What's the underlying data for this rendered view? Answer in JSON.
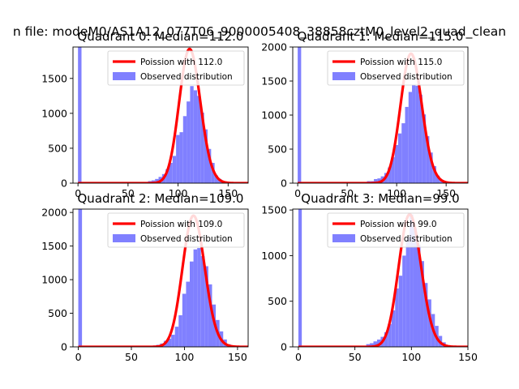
{
  "figure": {
    "suptitle": "n file: modeM0/AS1A12_077T06_9000005408_38858cztM0_level2_quad_clean"
  },
  "colors": {
    "poisson": "#ff0000",
    "histogram": "#8080ff",
    "axes": "#000000"
  },
  "chart_data": [
    {
      "type": "bar",
      "title": "Quadrant 0: Median=112.0",
      "xlim": [
        -5,
        170
      ],
      "ylim": [
        0,
        1950
      ],
      "xticks": [
        0,
        50,
        100,
        150
      ],
      "yticks": [
        0,
        500,
        1000,
        1500
      ],
      "legend": {
        "position": "top-right",
        "entries": [
          "Poission with 112.0",
          "Observed distribution"
        ]
      },
      "median": 112,
      "spike": {
        "x": 0,
        "width": 3.5,
        "value": 1950
      },
      "series": [
        {
          "name": "Poission with 112.0",
          "kind": "line",
          "lambda": 112,
          "scale": 1920,
          "x": [
            0,
            170
          ]
        },
        {
          "name": "Observed distribution",
          "kind": "histogram",
          "bin_width": 3.5,
          "bins": [
            [
              70,
              30
            ],
            [
              73.5,
              40
            ],
            [
              77,
              60
            ],
            [
              80.5,
              90
            ],
            [
              84,
              130
            ],
            [
              87.5,
              200
            ],
            [
              91,
              290
            ],
            [
              94.5,
              390
            ],
            [
              98,
              690
            ],
            [
              101.5,
              730
            ],
            [
              105,
              960
            ],
            [
              108.5,
              1170
            ],
            [
              112,
              1390
            ],
            [
              115.5,
              1330
            ],
            [
              119,
              1250
            ],
            [
              122.5,
              1010
            ],
            [
              126,
              770
            ],
            [
              129.5,
              490
            ],
            [
              133,
              290
            ],
            [
              136.5,
              110
            ],
            [
              140,
              60
            ],
            [
              143.5,
              15
            ],
            [
              147,
              5
            ]
          ]
        }
      ]
    },
    {
      "type": "bar",
      "title": "Quadrant 1: Median=115.0",
      "xlim": [
        -5,
        172
      ],
      "ylim": [
        0,
        2000
      ],
      "xticks": [
        0,
        50,
        100,
        150
      ],
      "yticks": [
        0,
        500,
        1000,
        1500,
        2000
      ],
      "legend": {
        "position": "top-right",
        "entries": [
          "Poission with 115.0",
          "Observed distribution"
        ]
      },
      "median": 115,
      "spike": {
        "x": 0,
        "width": 3.5,
        "value": 2000
      },
      "series": [
        {
          "name": "Poission with 115.0",
          "kind": "line",
          "lambda": 115,
          "scale": 1900,
          "x": [
            0,
            172
          ]
        },
        {
          "name": "Observed distribution",
          "kind": "histogram",
          "bin_width": 3.5,
          "bins": [
            [
              70,
              30
            ],
            [
              73.5,
              30
            ],
            [
              77,
              60
            ],
            [
              80.5,
              70
            ],
            [
              84,
              100
            ],
            [
              87.5,
              150
            ],
            [
              91,
              230
            ],
            [
              94.5,
              380
            ],
            [
              98,
              560
            ],
            [
              101.5,
              730
            ],
            [
              105,
              880
            ],
            [
              108.5,
              1120
            ],
            [
              112,
              1340
            ],
            [
              115.5,
              1440
            ],
            [
              119,
              1430
            ],
            [
              122.5,
              1300
            ],
            [
              126,
              1010
            ],
            [
              129.5,
              690
            ],
            [
              133,
              450
            ],
            [
              136.5,
              250
            ],
            [
              140,
              110
            ],
            [
              143.5,
              50
            ],
            [
              147,
              15
            ]
          ]
        }
      ]
    },
    {
      "type": "bar",
      "title": "Quadrant 2: Median=109.0",
      "xlim": [
        -5,
        160
      ],
      "ylim": [
        0,
        2050
      ],
      "xticks": [
        0,
        50,
        100,
        150
      ],
      "yticks": [
        0,
        500,
        1000,
        1500,
        2000
      ],
      "legend": {
        "position": "top-right",
        "entries": [
          "Poission with 109.0",
          "Observed distribution"
        ]
      },
      "median": 109,
      "spike": {
        "x": 0,
        "width": 3.5,
        "value": 2050
      },
      "series": [
        {
          "name": "Poission with 109.0",
          "kind": "line",
          "lambda": 109,
          "scale": 1950,
          "x": [
            0,
            160
          ]
        },
        {
          "name": "Observed distribution",
          "kind": "histogram",
          "bin_width": 3.5,
          "bins": [
            [
              70,
              20
            ],
            [
              73.5,
              30
            ],
            [
              77,
              50
            ],
            [
              80.5,
              90
            ],
            [
              84,
              120
            ],
            [
              87.5,
              180
            ],
            [
              91,
              300
            ],
            [
              94.5,
              470
            ],
            [
              98,
              790
            ],
            [
              101.5,
              970
            ],
            [
              105,
              1270
            ],
            [
              108.5,
              1450
            ],
            [
              112,
              1470
            ],
            [
              115.5,
              1350
            ],
            [
              119,
              1200
            ],
            [
              122.5,
              930
            ],
            [
              126,
              630
            ],
            [
              129.5,
              400
            ],
            [
              133,
              230
            ],
            [
              136.5,
              110
            ],
            [
              140,
              40
            ],
            [
              143.5,
              10
            ]
          ]
        }
      ]
    },
    {
      "type": "bar",
      "title": "Quadrant 3: Median=99.0",
      "xlim": [
        -5,
        150
      ],
      "ylim": [
        0,
        1510
      ],
      "xticks": [
        0,
        50,
        100,
        150
      ],
      "yticks": [
        0,
        500,
        1000,
        1500
      ],
      "legend": {
        "position": "top-right",
        "entries": [
          "Poission with 99.0",
          "Observed distribution"
        ]
      },
      "median": 99,
      "spike": {
        "x": 0,
        "width": 3.0,
        "value": 1510
      },
      "series": [
        {
          "name": "Poission with 99.0",
          "kind": "line",
          "lambda": 99,
          "scale": 1450,
          "x": [
            0,
            150
          ]
        },
        {
          "name": "Observed distribution",
          "kind": "histogram",
          "bin_width": 3.2,
          "bins": [
            [
              60,
              30
            ],
            [
              63.2,
              40
            ],
            [
              66.4,
              60
            ],
            [
              69.6,
              80
            ],
            [
              72.8,
              110
            ],
            [
              76,
              160
            ],
            [
              79.2,
              250
            ],
            [
              82.4,
              400
            ],
            [
              85.6,
              640
            ],
            [
              88.8,
              780
            ],
            [
              92,
              1000
            ],
            [
              95.2,
              1200
            ],
            [
              98.4,
              1450
            ],
            [
              101.6,
              1300
            ],
            [
              104.8,
              1120
            ],
            [
              108,
              940
            ],
            [
              111.2,
              700
            ],
            [
              114.4,
              520
            ],
            [
              117.6,
              360
            ],
            [
              120.8,
              230
            ],
            [
              124,
              120
            ],
            [
              127.2,
              50
            ],
            [
              130.4,
              15
            ]
          ]
        }
      ]
    }
  ]
}
